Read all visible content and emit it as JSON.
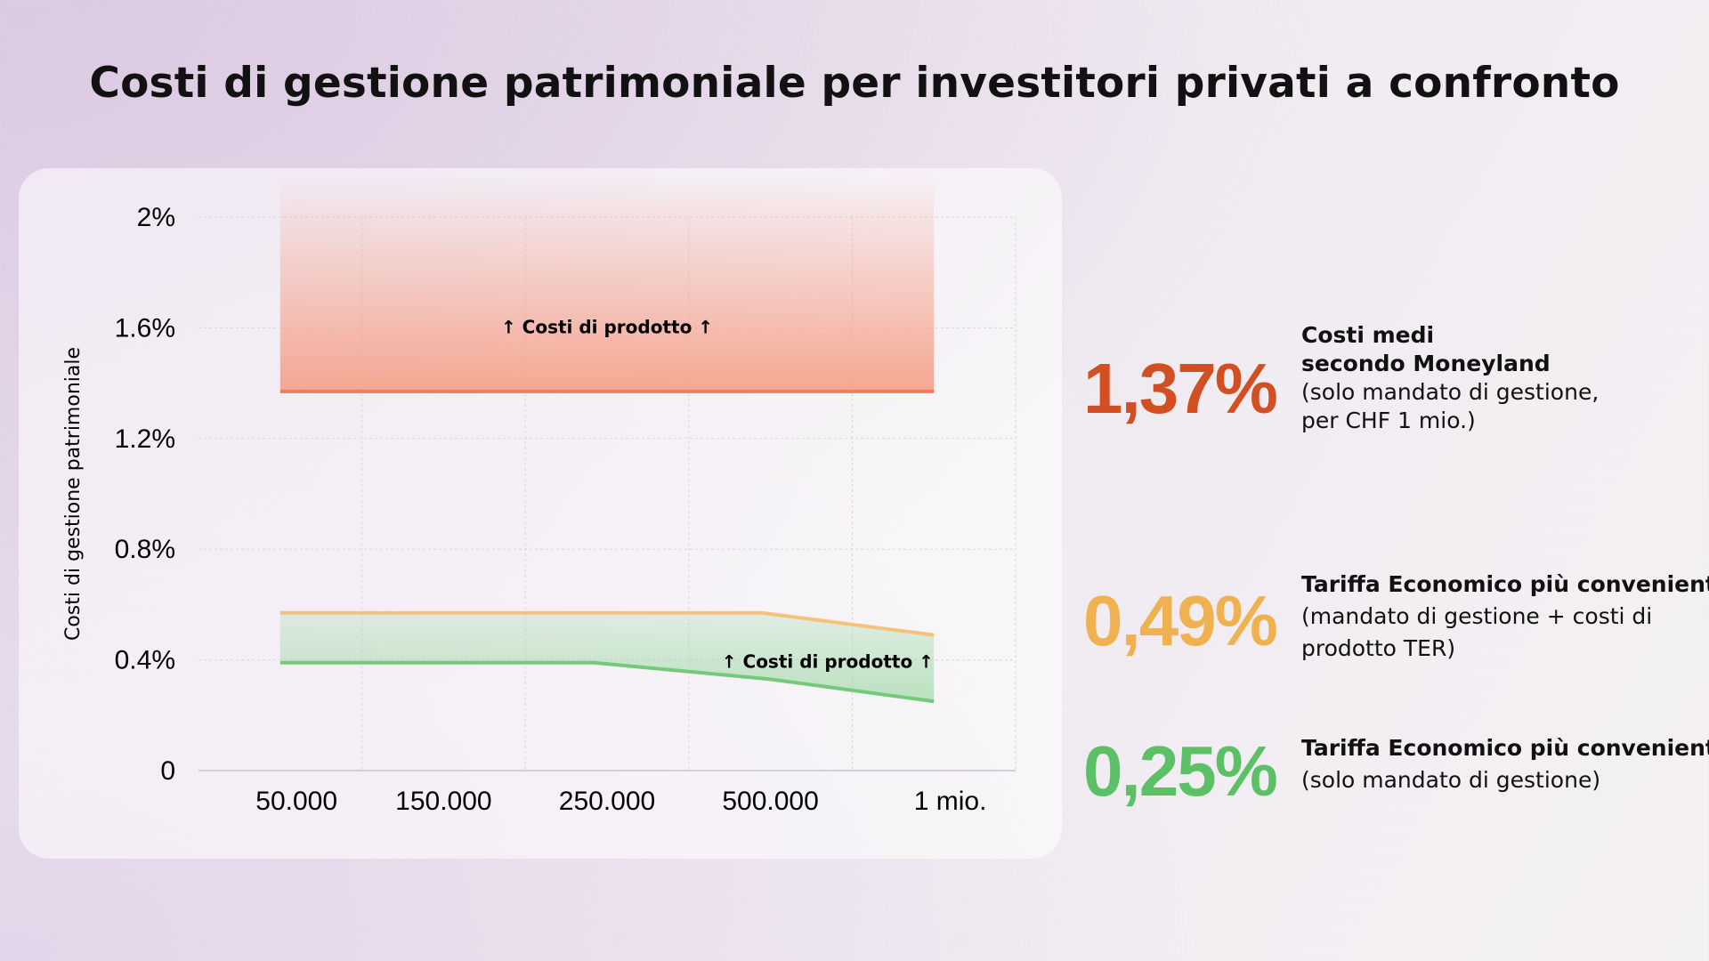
{
  "title": "Costi di gestione patrimoniale per investitori privati a confronto",
  "colors": {
    "orange": "#d24e23",
    "yellow": "#f0b250",
    "green": "#5cc166",
    "orange_band": "#f47a5a",
    "yellow_line": "#f6c27a",
    "green_line": "#74c97a"
  },
  "chart_data": {
    "type": "area",
    "ylabel": "Costi di gestione patrimoniale",
    "xlabel": "",
    "x": [
      "50.000",
      "150.000",
      "250.000",
      "500.000",
      "1 mio."
    ],
    "yticks": [
      "0",
      "0.4%",
      "0.8%",
      "1.2%",
      "1.6%",
      "2%"
    ],
    "ylim": [
      0,
      2.0
    ],
    "grid": true,
    "series": [
      {
        "role": "band-top",
        "color": "#f47a5a",
        "values": [
          1.37,
          1.37,
          1.37,
          1.37,
          1.37
        ],
        "fill_to": 2.15,
        "label": "↑ Costi di prodotto ↑"
      },
      {
        "role": "upper-line",
        "color": "#f6c27a",
        "values": [
          0.57,
          0.57,
          0.57,
          0.57,
          0.49
        ]
      },
      {
        "role": "lower-line",
        "color": "#74c97a",
        "values": [
          0.39,
          0.39,
          0.39,
          0.33,
          0.25
        ],
        "fill_to_series": 1,
        "label": "↑ Costi di prodotto ↑"
      }
    ]
  },
  "stats": [
    {
      "value": "1,37%",
      "lines_bold": [
        "Costi medi",
        "secondo Moneyland"
      ],
      "lines": [
        "(solo mandato di gestione,",
        "per CHF 1 mio.)"
      ]
    },
    {
      "value": "0,49%",
      "lines_bold": [
        "Tariffa Economico più conveniente"
      ],
      "lines": [
        "(mandato di gestione + costi di",
        "prodotto TER)"
      ]
    },
    {
      "value": "0,25%",
      "lines_bold": [
        "Tariffa Economico più conveniente"
      ],
      "lines": [
        "(solo mandato di gestione)"
      ]
    }
  ]
}
